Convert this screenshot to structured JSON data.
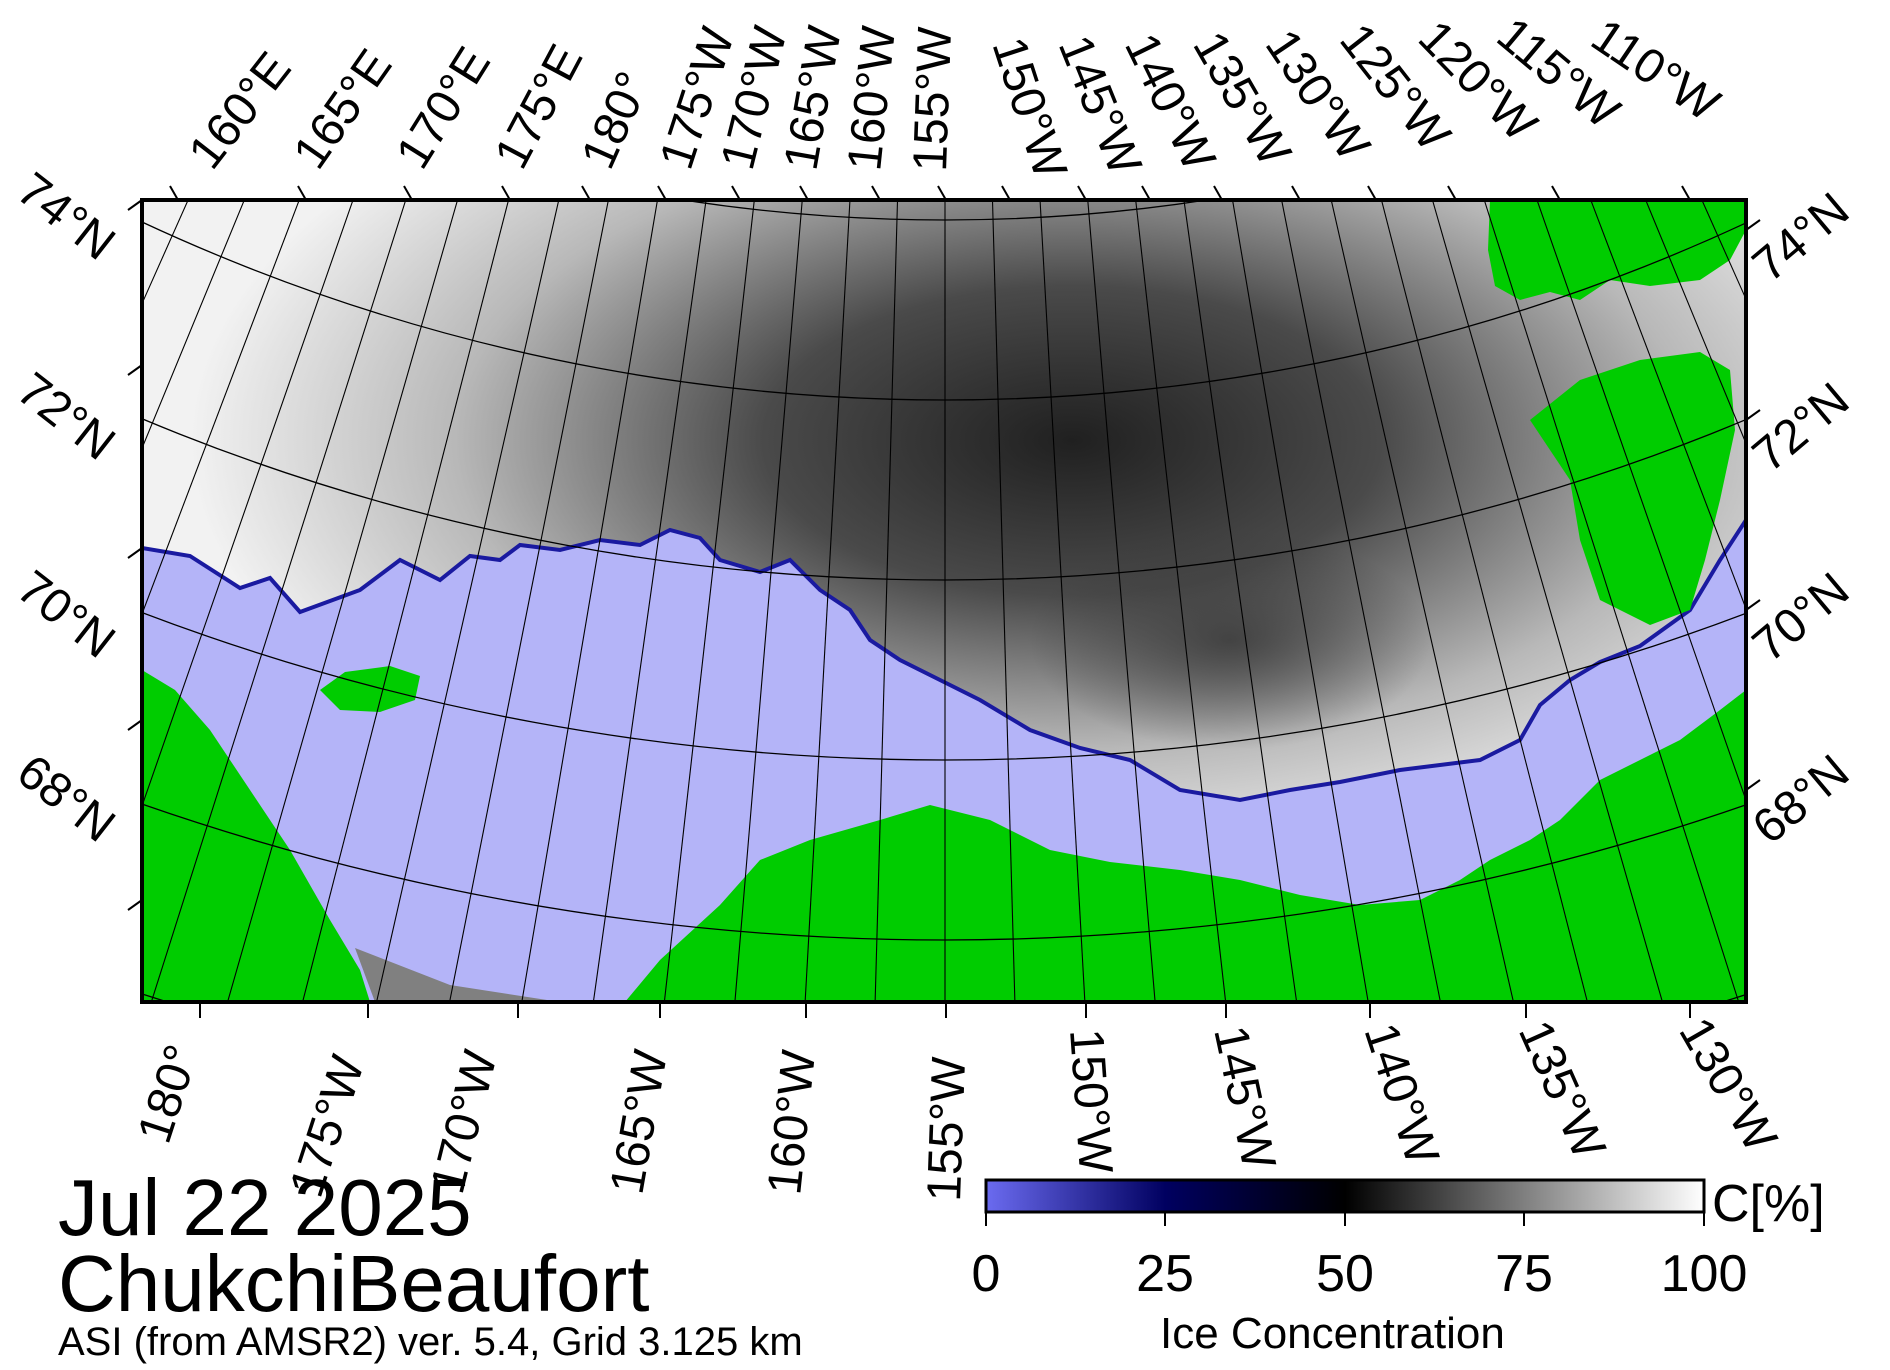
{
  "map": {
    "date": "Jul 22 2025",
    "region": "ChukchiBeaufort",
    "product": "ASI (from AMSR2) ver. 5.4,  Grid 3.125 km",
    "top_lon_labels": [
      "160°E",
      "165°E",
      "170°E",
      "175°E",
      "180°",
      "175°W",
      "170°W",
      "165°W",
      "160°W",
      "155°W",
      "150°W",
      "145°W",
      "140°W",
      "135°W",
      "130°W",
      "125°W",
      "120°W",
      "115°W",
      "110°W"
    ],
    "bottom_lon_labels": [
      "180°",
      "175°W",
      "170°W",
      "165°W",
      "160°W",
      "155°W",
      "150°W",
      "145°W",
      "140°W",
      "135°W",
      "130°W"
    ],
    "left_lat_labels": [
      "74°N",
      "72°N",
      "70°N",
      "68°N"
    ],
    "right_lat_labels": [
      "74°N",
      "72°N",
      "70°N",
      "68°N"
    ],
    "colors": {
      "land": "#00cc00",
      "open_water": "#b4b4f8",
      "no_data": "#808080",
      "coast_edge": "#1a1aa0"
    }
  },
  "colorbar": {
    "title": "Ice Concentration",
    "unit": "C[%]",
    "ticks": [
      "0",
      "25",
      "50",
      "75",
      "100"
    ],
    "stops": [
      "#6b6bf0",
      "#000060",
      "#000000",
      "#ffffff"
    ]
  }
}
